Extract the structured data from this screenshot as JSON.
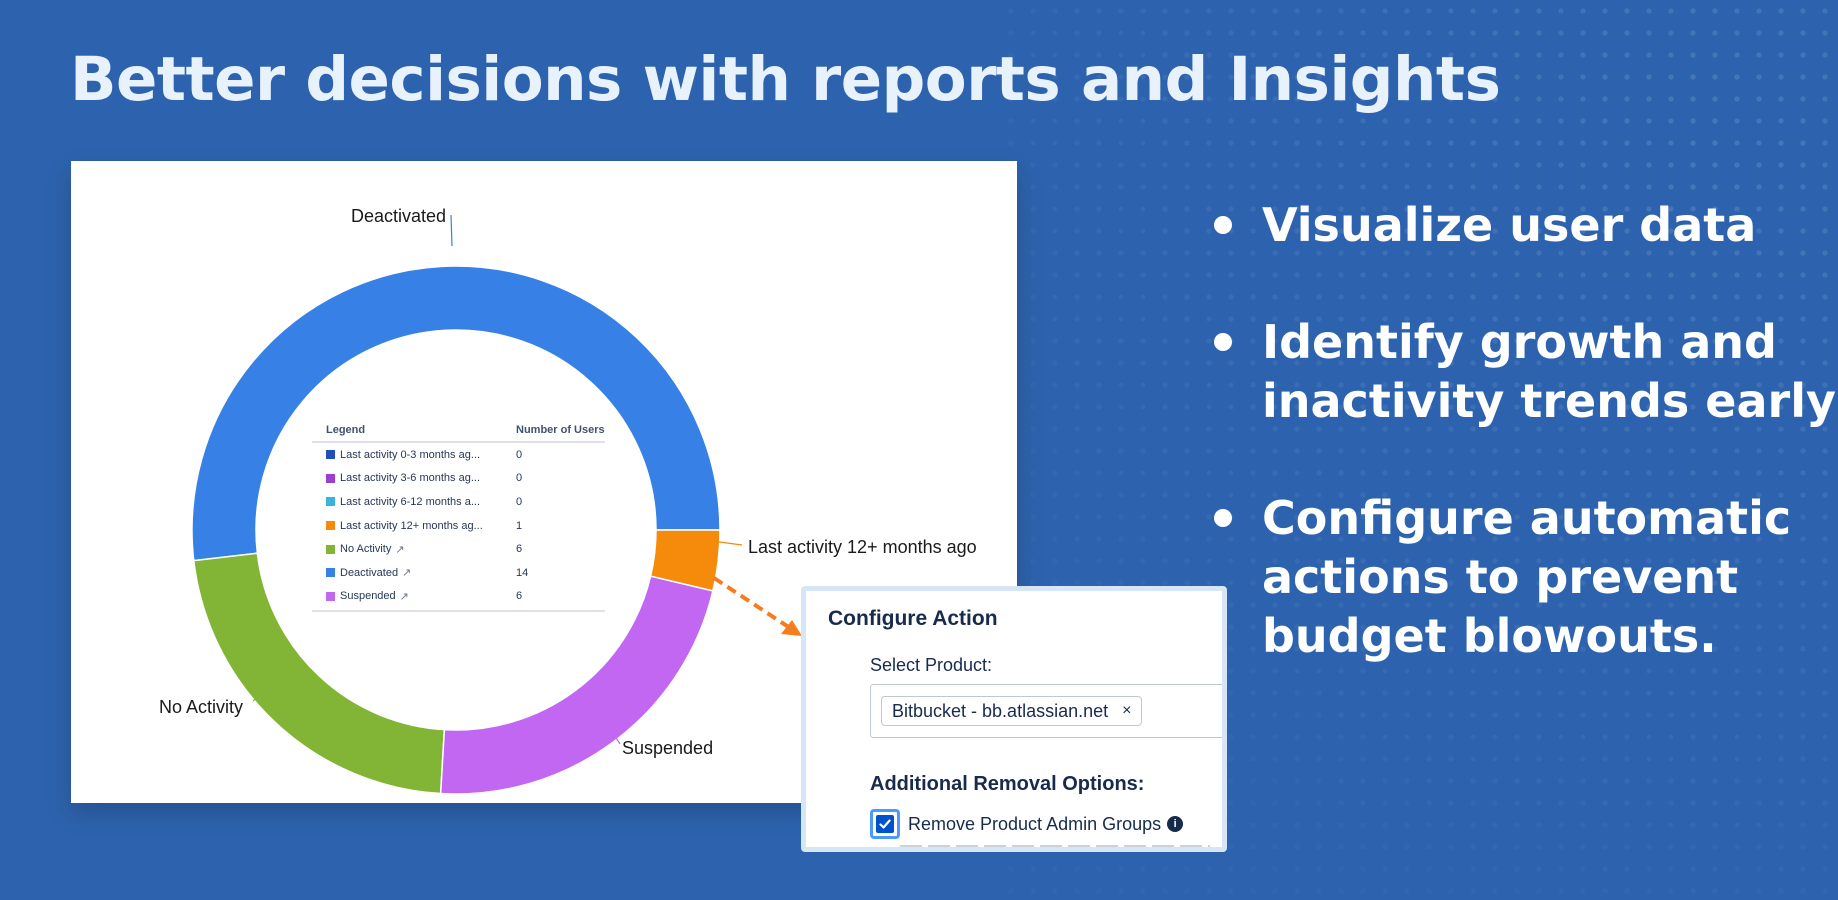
{
  "title": "Better decisions with reports and Insights",
  "chart_data": {
    "type": "pie",
    "categories": [
      "Last activity 0-3 months ago",
      "Last activity 3-6 months ago",
      "Last activity 6-12 months ago",
      "Last activity 12+ months ago",
      "No Activity",
      "Deactivated",
      "Suspended"
    ],
    "values": [
      0,
      0,
      0,
      1,
      6,
      14,
      6
    ],
    "colors": [
      "#1f4fb8",
      "#9b3fd1",
      "#38b4dd",
      "#f58a0b",
      "#82b535",
      "#3781e6",
      "#c267f1"
    ],
    "callout_labels": {
      "deactivated": "Deactivated",
      "last_12": "Last activity 12+ months ago",
      "no_activity": "No Activity",
      "suspended": "Suspended"
    },
    "legend": {
      "col_legend": "Legend",
      "col_users": "Number of Users",
      "rows": [
        {
          "label": "Last activity 0-3 months ag...",
          "value": "0",
          "color": "#1f4fb8",
          "external": false
        },
        {
          "label": "Last activity 3-6 months ag...",
          "value": "0",
          "color": "#9b3fd1",
          "external": false
        },
        {
          "label": "Last activity 6-12 months a...",
          "value": "0",
          "color": "#38b4dd",
          "external": false
        },
        {
          "label": "Last activity 12+ months ag...",
          "value": "1",
          "color": "#f58a0b",
          "external": false
        },
        {
          "label": "No Activity",
          "value": "6",
          "color": "#82b535",
          "external": true
        },
        {
          "label": "Deactivated",
          "value": "14",
          "color": "#3781e6",
          "external": true
        },
        {
          "label": "Suspended",
          "value": "6",
          "color": "#c267f1",
          "external": true
        }
      ]
    }
  },
  "bullets": [
    {
      "lines": [
        "Visualize user data"
      ]
    },
    {
      "lines": [
        "Identify growth and",
        "inactivity trends early"
      ]
    },
    {
      "lines": [
        "Configure automatic",
        "actions to prevent",
        "budget blowouts."
      ]
    }
  ],
  "configure_action": {
    "title": "Configure Action",
    "select_label": "Select Product:",
    "selected_chip": "Bitbucket - bb.atlassian.net",
    "chip_remove": "×",
    "options_label": "Additional Removal Options:",
    "checkbox_label": "Remove Product Admin Groups",
    "checkbox_checked": true,
    "info_glyph": "i"
  },
  "colors": {
    "background": "#2d63ae",
    "title": "#e7f2fd",
    "arrow": "#f57c1f",
    "checkbox": "#0052cc"
  }
}
